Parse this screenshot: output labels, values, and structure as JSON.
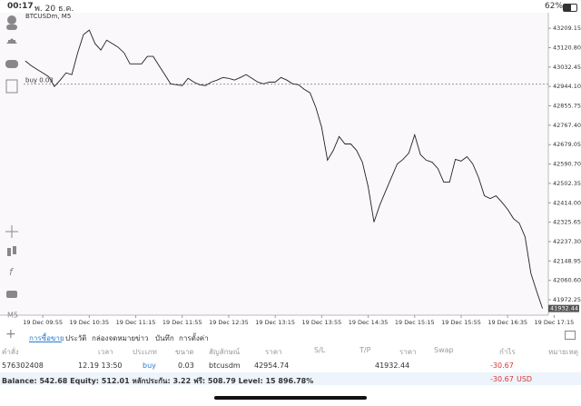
{
  "status_bar": {
    "time": "00:17",
    "date": "พ. 20 ธ.ค.",
    "battery": "62%"
  },
  "toolbar": {
    "timeframe": "M5"
  },
  "chart_data": {
    "type": "line",
    "title": "BTCUSDm, M5",
    "position_label": "buy 0.03",
    "color": "#222222",
    "values": [
      43060,
      43039,
      43022,
      43006,
      42989,
      42944,
      42973,
      43006,
      42998,
      43097,
      43180,
      43201,
      43139,
      43110,
      43155,
      43139,
      43122,
      43097,
      43047,
      43047,
      43047,
      43081,
      43081,
      43039,
      42998,
      42956,
      42952,
      42948,
      42981,
      42964,
      42952,
      42948,
      42964,
      42973,
      42985,
      42981,
      42973,
      42985,
      42998,
      42981,
      42964,
      42956,
      42964,
      42964,
      42985,
      42973,
      42956,
      42952,
      42931,
      42915,
      42848,
      42757,
      42608,
      42653,
      42716,
      42682,
      42682,
      42653,
      42599,
      42487,
      42326,
      42404,
      42467,
      42529,
      42591,
      42612,
      42641,
      42724,
      42633,
      42608,
      42599,
      42570,
      42508,
      42508,
      42612,
      42604,
      42624,
      42591,
      42529,
      42446,
      42433,
      42446,
      42417,
      42384,
      42342,
      42321,
      42259,
      42093,
      42010,
      41932.44
    ],
    "ylim": [
      41902,
      43280
    ],
    "yticks": [
      43209.15,
      {
        "value": 43120.8,
        "label": "43120.80"
      },
      43032.45,
      {
        "value": 42944.1,
        "label": "42944.10"
      },
      42855.75,
      {
        "value": 42767.4,
        "label": "42767.40"
      },
      42679.05,
      {
        "value": 42590.7,
        "label": "42590.70"
      },
      42502.35,
      {
        "value": 42414,
        "label": "42414.00"
      },
      42325.65,
      {
        "value": 42237.3,
        "label": "42237.30"
      },
      42148.95,
      {
        "value": 42060.6,
        "label": "42060.60"
      },
      41972.25
    ],
    "xlim": [
      -0.3,
      90
    ],
    "xticks": [
      {
        "value": 3,
        "label": "19 Dec 09:55"
      },
      {
        "value": 11,
        "label": "19 Dec 10:35"
      },
      {
        "value": 19,
        "label": "19 Dec 11:15"
      },
      {
        "value": 27,
        "label": "19 Dec 11:55"
      },
      {
        "value": 35,
        "label": "19 Dec 12:35"
      },
      {
        "value": 43,
        "label": "19 Dec 13:15"
      },
      {
        "value": 51,
        "label": "19 Dec 13:55"
      },
      {
        "value": 59,
        "label": "19 Dec 14:35"
      },
      {
        "value": 67,
        "label": "19 Dec 15:15"
      },
      {
        "value": 75,
        "label": "19 Dec 15:55"
      },
      {
        "value": 83,
        "label": "19 Dec 16:35"
      },
      {
        "value": 91,
        "label": "19 Dec 17:15"
      }
    ]
  },
  "tabs": [
    "การซื้อขาย",
    "ประวัติ",
    "กล่องจดหมาย",
    "ข่าว",
    "บันทึก",
    "การตั้งค่า"
  ],
  "columns": [
    "คำสั่ง",
    "เวลา",
    "ประเภท",
    "ขนาด",
    "สัญลักษณ์",
    "ราคา",
    "S/L",
    "T/P",
    "ราคา",
    "Swap",
    "กำไร",
    "หมายเหตุ"
  ],
  "trades": [
    {
      "order": 576302408,
      "time": "12.19 13:50",
      "type": "buy",
      "size": 0.03,
      "symbol": "btcusdm",
      "price": 42954.74,
      "current_price": 41932.44,
      "profit": -30.67
    }
  ],
  "summary": {
    "text": "Balance: 542.68 Equity: 512.01 หลักประกัน: 3.22 ฟรี: 508.79 Level: 15 896.78%",
    "profit": -30.67,
    "currency": "USD"
  }
}
